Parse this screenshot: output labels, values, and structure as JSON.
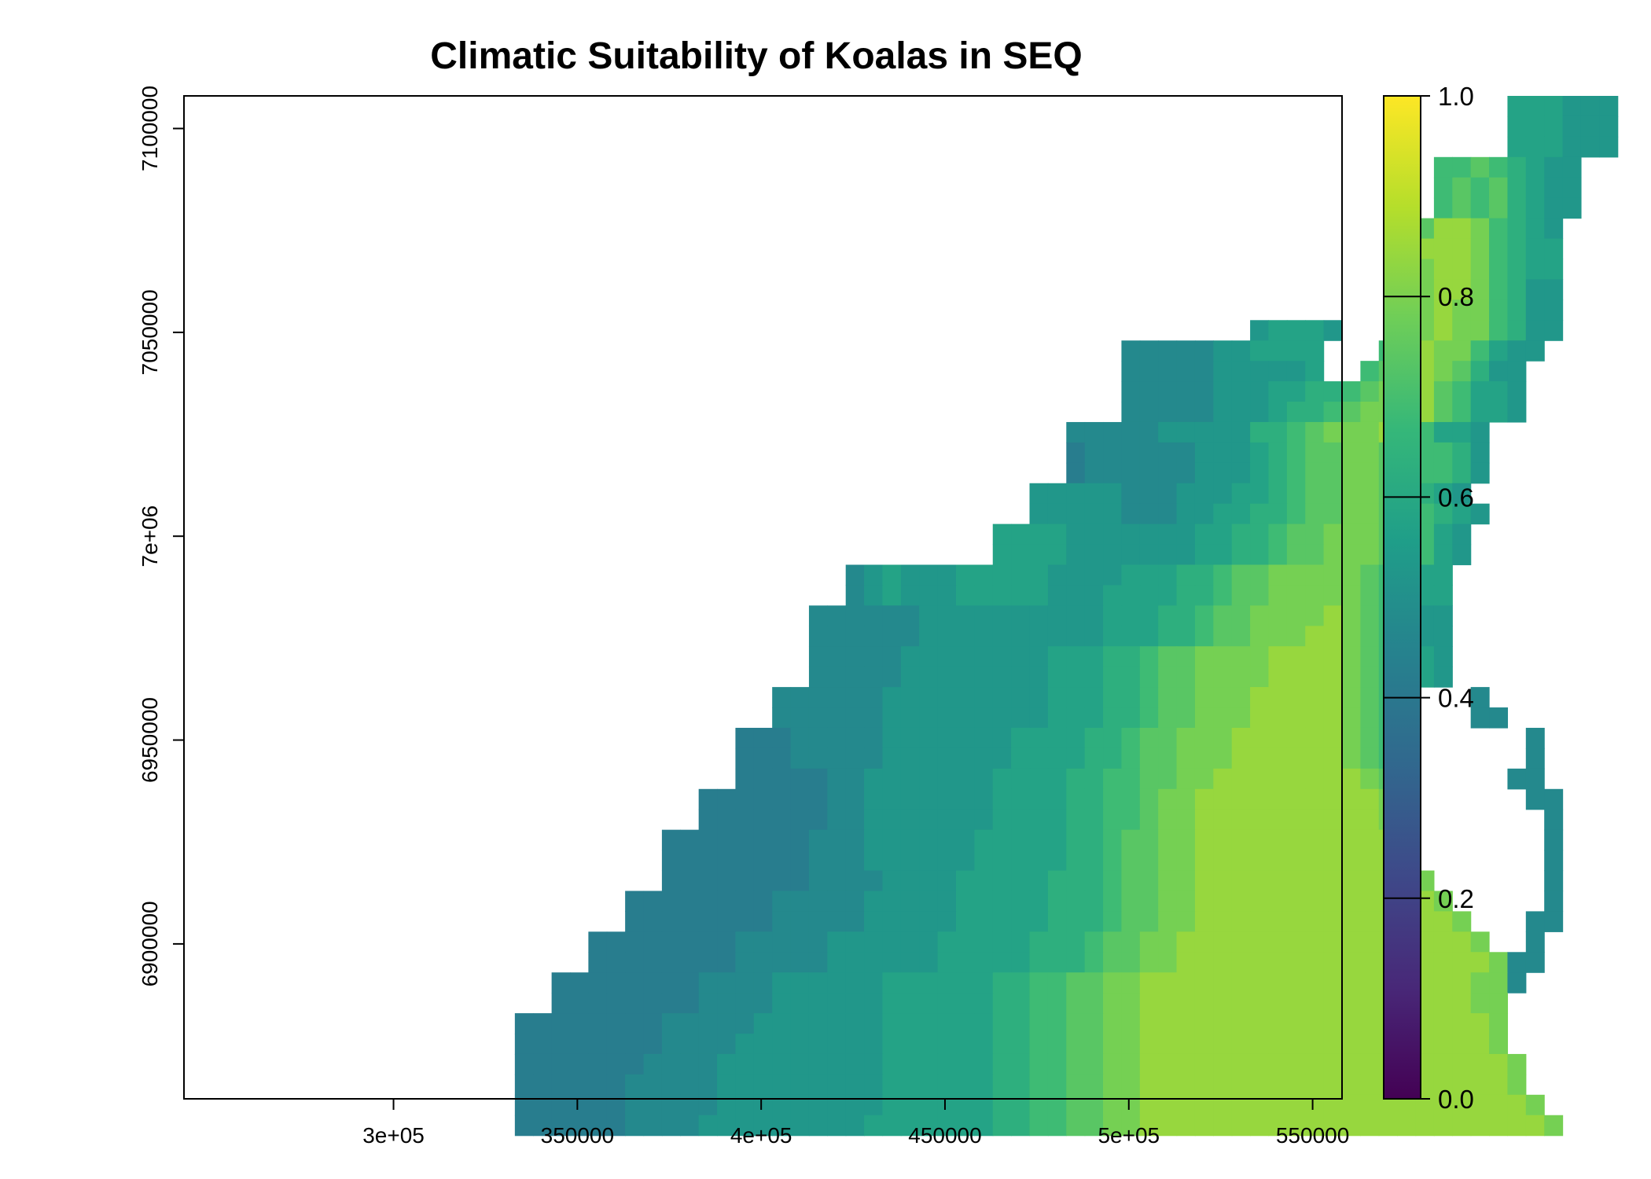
{
  "chart_data": {
    "type": "heatmap",
    "title": "Climatic Suitability of Koalas in SEQ",
    "xlabel": "",
    "ylabel": "",
    "xlim": [
      243000,
      558000
    ],
    "ylim": [
      6862000,
      7108000
    ],
    "x_ticks": [
      {
        "value": 300000,
        "label": "3e+05"
      },
      {
        "value": 350000,
        "label": "350000"
      },
      {
        "value": 400000,
        "label": "4e+05"
      },
      {
        "value": 450000,
        "label": "450000"
      },
      {
        "value": 500000,
        "label": "5e+05"
      },
      {
        "value": 550000,
        "label": "550000"
      }
    ],
    "y_ticks": [
      {
        "value": 6900000,
        "label": "6900000"
      },
      {
        "value": 6950000,
        "label": "6950000"
      },
      {
        "value": 7000000,
        "label": "7e+06"
      },
      {
        "value": 7050000,
        "label": "7050000"
      },
      {
        "value": 7100000,
        "label": "7100000"
      }
    ],
    "colorbar": {
      "range": [
        0.0,
        1.0
      ],
      "ticks": [
        {
          "value": 0.0,
          "label": "0.0"
        },
        {
          "value": 0.2,
          "label": "0.2"
        },
        {
          "value": 0.4,
          "label": "0.4"
        },
        {
          "value": 0.6,
          "label": "0.6"
        },
        {
          "value": 0.8,
          "label": "0.8"
        },
        {
          "value": 1.0,
          "label": "1.0"
        }
      ],
      "colormap": "viridis",
      "stops": [
        "#440154",
        "#482878",
        "#3e4989",
        "#31688e",
        "#26828e",
        "#1f9e89",
        "#35b779",
        "#6ece58",
        "#b5de2b",
        "#fde725"
      ]
    },
    "grid_origin": {
      "x_start": 243000,
      "y_top": 7108000,
      "cell_size": 5000
    },
    "grid_values": [
      "........................................................................BBBAAA...........................",
      "........................................................................BBBAAA...........................",
      "........................................................................BBBAAA...........................",
      "....................................................................DDEDCBAA............................",
      "....................................................................DEDECBAA............................",
      "....................................................................DEDECBAA............................",
      "..................................................................EEGGFDCBA.............................",
      "..................................................................EGGGFDCBB.............................",
      "..................................................................EFGGFDCBB.............................",
      "..................................................................EFGGFDCAA.............................",
      "..................................................................EFGFFDCAA.............................",
      "..........................................................ABBBA...DFGFFDCAA.............................",
      "...................................................99999AABBBB...DFGFFDBAA.............................",
      "...................................................99999AAAAAB..DEFGFECAA.............................",
      "...................................................99999AAABBCCDEFFGEDBBA.............................",
      "...................................................99999AAABCCDEFFGGEDBBA.............................",
      "................................................99999AAAAACCDEFFFGEDBBA..............................",
      "................................................8999999AAABCDEEFFEDDDCA..............................",
      "................................................8999999AAABCDEEFFEDDDCA..............................",
      "..............................................AAAAA999AAABBCDEEFFEDCBA..............................",
      "..............................................AAAAA999AABBCCDEEFFEDDCBA.............................",
      "............................................BBBBAAAAAAABBCCDEEFFFEDDBA..............................",
      "............................................BBBBAAAAAAABBCCDEEFFFEEDBA..............................",
      "....................................9ABAAABBBBBAAAABBBCCDEEFFFFFEDCBB..............................",
      "....................................9ABAAABBBBBAAABBBBCCDEEFFFFFEDCBB..............................",
      "..................................999999AAAAAAAAAABBBCCDEEFFFFGFEDBAA..............................",
      "..................................999999AAAAAAAAAABBBCCDEEFFFGGFEDBAA..............................",
      "..................................99999AAAAAAAABBBCCDEEFFFFGGGGFEDBBA..............................",
      "..................................99999AAAAAAAABBBCCDEEFFFFGGGGFEDBBA..............................",
      "................................999999AAAAAAAAABBBCCDEEFFFGGGGGFED....9...........................",
      "................................999999AAAAAAAAABBBCCDEEFFFGGGGGFED....99..........................",
      "..............................88899999AAAAAAABBBBCCDEEFFFGGGGGGFEDA......9.........................",
      "..............................88899999AAAAAAABBBBCCDEEFFFGGGGGGFEDA......9.........................",
      "..............................8888899AAAAAAABBBBCCDDEEFFGGGGGGGGFE......99.........................",
      "............................888888899AAAAAAABBBBCCDDEFFGGGGGGGGGGF.......99........................",
      "............................888888899AAAAAAABBBBCCDDEFFGGGGGGGGGGF........9........................",
      "..........................88888888999AAAAAABBBBBCCDEEFFGGGGGGGGGGGF.......9........................",
      "..........................88888888999AAAAAABBBBBCCDEEFFGGGGGGGGGGGF.......9........................",
      "..........................888888889999AAAABBBBBCCCDEEFFGGGGGGGGGGGGF......9........................",
      "........................8888888899999AAAAABBBBBCCCDEEFFGGGGGGGGGGGGGF.....9........................",
      "........................8888888899999AAAAABBBBBCCCDEEFFGGGGGGGGGGGGGGF...99........................",
      "......................8888888899999AAAAAABBBBBCCCDEEFFGGGGGGGGGGGGGGGGF..9.........................",
      "......................8888888899999AAAAAABBBBBCCCDEEFFGGGGGGGGGGGGGGGGGF99.........................",
      "....................888888889999AAAAAABBBBBBCCDDEEFFGGGGGGGGGGGGGGGGGGFF9..........................",
      "....................888888889999AAAAAABBBBBBCCDDEEFFGGGGGGGGGGGGGGGGGGFF...........................",
      "..................8888888899999AAAAAAABBBBBBCCDDEEFFGGGGGGGGGGGGGGGGGGGF...........................",
      "..................888888889999AAAAAAAABBBBBBCCDDEEFFGGGGGGGGGGGGGGGGGGGF...........................",
      "..................88888889999AAAAAAAAABBBBBBCCDDEEFFGGGGGGGGGGGGGGGGGGGGF..........................",
      "..................88888899999AAAAAAAAABBBBBBCCDDEEFFGGGGGGGGGGGGGGGGGGGGF..........................",
      "..................88888899999AAAAAAAAABBBBBBCCDDEEFFGGGGGGGGGGGGGGGGGGGGGF.........................",
      "..................8888889999AAAAAAAAABBBBBBBCCDDEEFFGGGGGGGGGGGGGGGGGGGGGGF........................",
      "...................................................................................................."
    ]
  }
}
